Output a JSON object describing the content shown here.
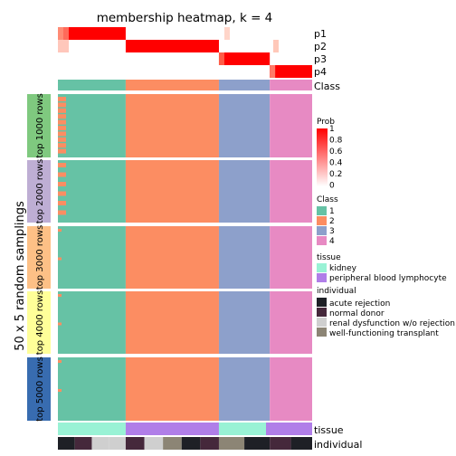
{
  "chart_data": {
    "type": "heatmap",
    "title": "membership heatmap, k = 4",
    "y_group_label": "50 x 5 random samplings",
    "prob_rows": [
      "p1",
      "p2",
      "p3",
      "p4"
    ],
    "class_row_label": "Class",
    "annotation_rows": [
      "tissue",
      "individual"
    ],
    "samplings": [
      "top 1000 rows",
      "top 2000 rows",
      "top 3000 rows",
      "top 4000 rows",
      "top 5000 rows"
    ],
    "sampling_colors": [
      "#7fc97f",
      "#beaed4",
      "#fdc086",
      "#ffff99",
      "#386cb0"
    ],
    "sample_segments": [
      {
        "count": 8,
        "class": 1,
        "tissue": "kidney",
        "individual": [
          "acute rejection",
          "normal donor",
          "renal dysfunction w/o rejection",
          "renal dysfunction w/o rejection"
        ]
      },
      {
        "count": 11,
        "class": 2,
        "tissue": "peripheral blood lymphocyte",
        "individual": [
          "normal donor",
          "renal dysfunction w/o rejection",
          "well-functioning transplant",
          "acute rejection",
          "normal donor"
        ]
      },
      {
        "count": 6,
        "class": 3,
        "tissue": "kidney",
        "individual": [
          "well-functioning transplant",
          "acute rejection"
        ]
      },
      {
        "count": 5,
        "class": 4,
        "tissue": "peripheral blood lymphocyte",
        "individual": [
          "normal donor",
          "acute rejection"
        ]
      }
    ],
    "legends": {
      "prob": {
        "title": "Prob",
        "ticks": [
          "1",
          "0.8",
          "0.6",
          "0.4",
          "0.2",
          "0"
        ],
        "low_color": "#ffffff",
        "high_color": "#ff0000"
      },
      "class": {
        "title": "Class",
        "items": [
          {
            "label": "1",
            "color": "#66c2a5"
          },
          {
            "label": "2",
            "color": "#fc8d62"
          },
          {
            "label": "3",
            "color": "#8da0cb"
          },
          {
            "label": "4",
            "color": "#e78ac3"
          }
        ]
      },
      "tissue": {
        "title": "tissue",
        "items": [
          {
            "label": "kidney",
            "color": "#99f2d5"
          },
          {
            "label": "peripheral blood lymphocyte",
            "color": "#b07ee8"
          }
        ]
      },
      "individual": {
        "title": "individual",
        "items": [
          {
            "label": "acute rejection",
            "color": "#1e2026"
          },
          {
            "label": "normal donor",
            "color": "#45283b"
          },
          {
            "label": "renal dysfunction w/o rejection",
            "color": "#cfcfcf"
          },
          {
            "label": "well-functioning transplant",
            "color": "#8c8575"
          }
        ]
      }
    }
  }
}
